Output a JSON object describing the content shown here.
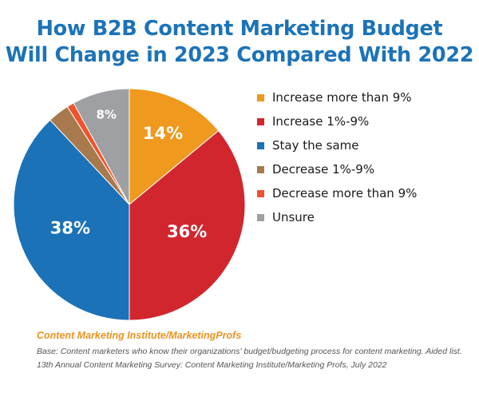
{
  "title": {
    "line1": "How B2B Content Marketing Budget",
    "line2": "Will Change in 2023 Compared With 2022"
  },
  "colors": {
    "title": "#1c73b8",
    "source": "#e89422",
    "note": "#555555",
    "slice_label": "#ffffff"
  },
  "chart_data": {
    "type": "pie",
    "title": "How B2B Content Marketing Budget Will Change in 2023 Compared With 2022",
    "legend_position": "right",
    "start_angle": "12 o'clock",
    "direction": "clockwise",
    "slices": [
      {
        "label": "Increase more than 9%",
        "value": 14,
        "display": "14%",
        "color": "#ef991e",
        "label_placement": "inside"
      },
      {
        "label": "Increase 1%-9%",
        "value": 36,
        "display": "36%",
        "color": "#d2262f",
        "label_placement": "inside"
      },
      {
        "label": "Stay the same",
        "value": 38,
        "display": "38%",
        "color": "#1b72b7",
        "label_placement": "inside"
      },
      {
        "label": "Decrease 1%-9%",
        "value": 3,
        "display": "3%",
        "color": "#a7794d",
        "label_placement": "outside"
      },
      {
        "label": "Decrease more than 9%",
        "value": 1,
        "display": "1%",
        "color": "#f0532b",
        "label_placement": "outside"
      },
      {
        "label": "Unsure",
        "value": 8,
        "display": "8%",
        "color": "#9fa0a3",
        "label_placement": "inside"
      }
    ]
  },
  "footer": {
    "source": "Content Marketing Institute/MarketingProfs",
    "note1": "Base: Content marketers who know their organizations' budget/budgeting process for content marketing. Aided list.",
    "note2": "13th Annual Content Marketing Survey: Content Marketing Institute/Marketing Profs, July 2022"
  }
}
